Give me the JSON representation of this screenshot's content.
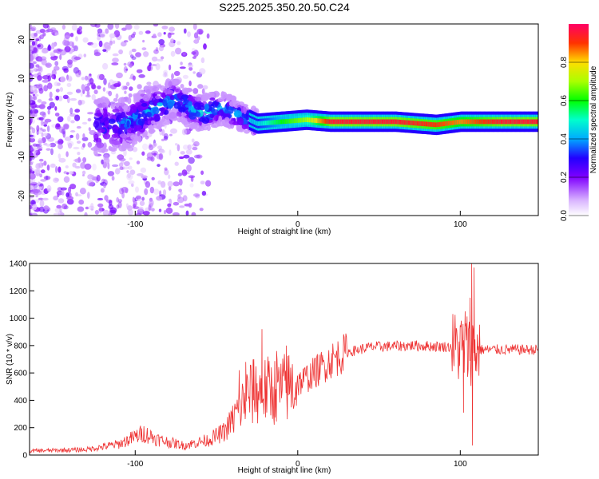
{
  "title": "S225.2025.350.20.50.C24",
  "chart_data": [
    {
      "type": "heatmap",
      "xlabel": "Height of straight line (km)",
      "ylabel": "Frequency (Hz)",
      "xlim": [
        -165,
        148
      ],
      "ylim": [
        -25,
        24
      ],
      "xticks": [
        -100,
        0,
        100
      ],
      "yticks": [
        -20,
        -10,
        0,
        10,
        20
      ],
      "colorbar": {
        "label": "Normalized spectral amplitude",
        "range": [
          0,
          1
        ],
        "ticks": [
          "0.0",
          "0.2",
          "0.4",
          "0.6",
          "0.8"
        ],
        "tick_values": [
          0,
          0.2,
          0.4,
          0.6,
          0.8
        ]
      },
      "ridge_track": [
        {
          "x": -120,
          "f": -2,
          "amp": 0.3
        },
        {
          "x": -105,
          "f": -1.5,
          "amp": 0.35
        },
        {
          "x": -95,
          "f": 1,
          "amp": 0.4
        },
        {
          "x": -85,
          "f": 3,
          "amp": 0.4
        },
        {
          "x": -75,
          "f": 5,
          "amp": 0.35
        },
        {
          "x": -60,
          "f": 1,
          "amp": 0.45
        },
        {
          "x": -48,
          "f": 2.5,
          "amp": 0.4
        },
        {
          "x": -38,
          "f": 1,
          "amp": 0.4
        },
        {
          "x": -25,
          "f": -1.5,
          "amp": 0.45
        },
        {
          "x": -10,
          "f": -1,
          "amp": 0.6
        },
        {
          "x": 5,
          "f": -0.5,
          "amp": 0.7
        },
        {
          "x": 20,
          "f": -1,
          "amp": 0.95
        },
        {
          "x": 60,
          "f": -1,
          "amp": 0.95
        },
        {
          "x": 85,
          "f": -1.8,
          "amp": 0.9
        },
        {
          "x": 100,
          "f": -1,
          "amp": 0.85
        },
        {
          "x": 125,
          "f": -1,
          "amp": 0.95
        },
        {
          "x": 148,
          "f": -1,
          "amp": 0.95
        }
      ]
    },
    {
      "type": "line",
      "xlabel": "Height of straight line (km)",
      "ylabel": "SNR (10 * v/v)",
      "xlim": [
        -165,
        148
      ],
      "ylim": [
        0,
        1400
      ],
      "xticks": [
        -100,
        0,
        100
      ],
      "yticks": [
        0,
        200,
        400,
        600,
        800,
        1000,
        1200,
        1400
      ],
      "series": [
        {
          "color": "#ee3333",
          "envelope": [
            {
              "x": -165,
              "y": 30
            },
            {
              "x": -130,
              "y": 40
            },
            {
              "x": -110,
              "y": 80
            },
            {
              "x": -95,
              "y": 160
            },
            {
              "x": -85,
              "y": 110
            },
            {
              "x": -70,
              "y": 70
            },
            {
              "x": -55,
              "y": 110
            },
            {
              "x": -45,
              "y": 170
            },
            {
              "x": -38,
              "y": 300
            },
            {
              "x": -30,
              "y": 450
            },
            {
              "x": -20,
              "y": 470
            },
            {
              "x": -10,
              "y": 480
            },
            {
              "x": 0,
              "y": 520
            },
            {
              "x": 10,
              "y": 600
            },
            {
              "x": 20,
              "y": 690
            },
            {
              "x": 30,
              "y": 750
            },
            {
              "x": 45,
              "y": 790
            },
            {
              "x": 70,
              "y": 800
            },
            {
              "x": 95,
              "y": 790
            },
            {
              "x": 110,
              "y": 770
            },
            {
              "x": 148,
              "y": 770
            }
          ],
          "spikes": [
            {
              "x": -36,
              "y": 620
            },
            {
              "x": -32,
              "y": 680
            },
            {
              "x": -27,
              "y": 700
            },
            {
              "x": -22,
              "y": 920
            },
            {
              "x": -13,
              "y": 760
            },
            {
              "x": -7,
              "y": 800
            },
            {
              "x": 102,
              "y": 310
            },
            {
              "x": 103,
              "y": 1050
            },
            {
              "x": 105,
              "y": 920
            },
            {
              "x": 106,
              "y": 1150
            },
            {
              "x": 107,
              "y": 1400
            },
            {
              "x": 107.5,
              "y": 70
            },
            {
              "x": 108.5,
              "y": 1370
            }
          ]
        }
      ]
    }
  ]
}
